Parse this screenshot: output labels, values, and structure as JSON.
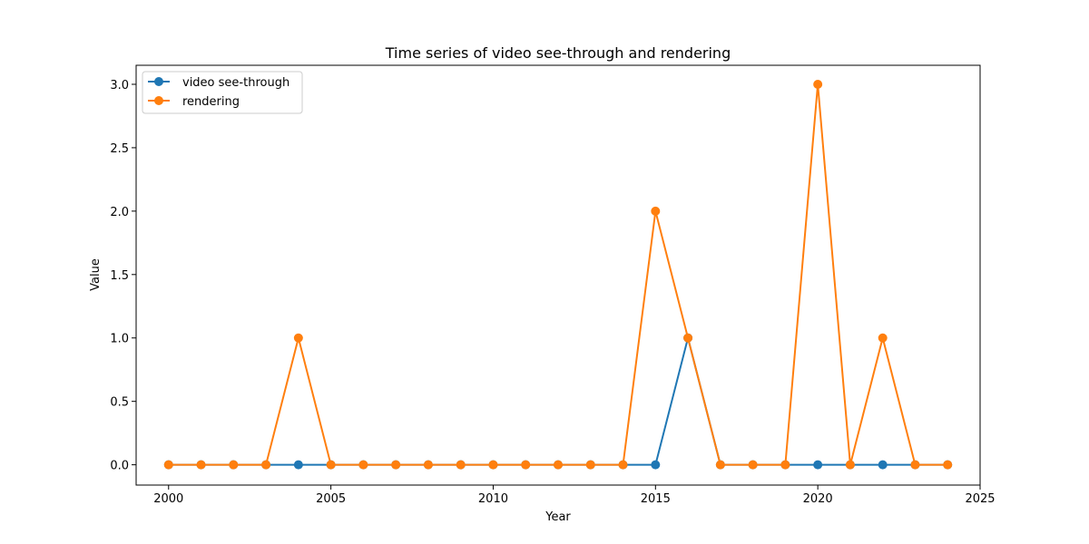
{
  "chart_data": {
    "type": "line",
    "title": "Time series of video see-through and rendering",
    "xlabel": "Year",
    "ylabel": "Value",
    "xlim": [
      1999,
      2025
    ],
    "ylim": [
      -0.16,
      3.15
    ],
    "xticks": [
      2000,
      2005,
      2010,
      2015,
      2020,
      2025
    ],
    "yticks": [
      0.0,
      0.5,
      1.0,
      1.5,
      2.0,
      2.5,
      3.0
    ],
    "ytick_labels": [
      "0.0",
      "0.5",
      "1.0",
      "1.5",
      "2.0",
      "2.5",
      "3.0"
    ],
    "legend_position": "upper-left",
    "x": [
      2000,
      2001,
      2002,
      2003,
      2004,
      2005,
      2006,
      2007,
      2008,
      2009,
      2010,
      2011,
      2012,
      2013,
      2014,
      2015,
      2016,
      2017,
      2018,
      2019,
      2020,
      2021,
      2022,
      2023,
      2024
    ],
    "series": [
      {
        "name": "video see-through",
        "color": "#1f77b4",
        "values": [
          0,
          0,
          0,
          0,
          0,
          0,
          0,
          0,
          0,
          0,
          0,
          0,
          0,
          0,
          0,
          0,
          1,
          0,
          0,
          0,
          0,
          0,
          0,
          0,
          0
        ]
      },
      {
        "name": "rendering",
        "color": "#ff7f0e",
        "values": [
          0,
          0,
          0,
          0,
          1,
          0,
          0,
          0,
          0,
          0,
          0,
          0,
          0,
          0,
          0,
          2,
          1,
          0,
          0,
          0,
          3,
          0,
          1,
          0,
          0
        ]
      }
    ]
  }
}
